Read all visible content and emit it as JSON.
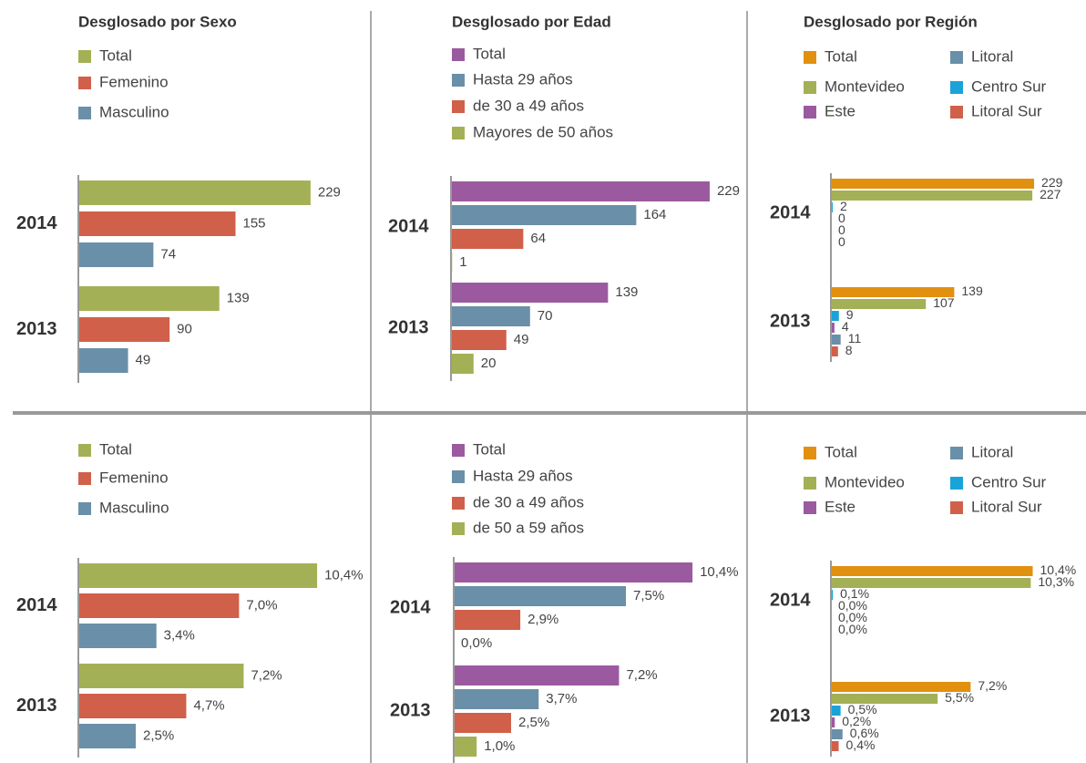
{
  "chart_data": [
    {
      "type": "bar",
      "title": "Desglosado por Sexo",
      "categories": [
        "2014",
        "2013"
      ],
      "series": [
        {
          "name": "Total",
          "color": "#a4b055",
          "values": [
            229,
            139
          ]
        },
        {
          "name": "Femenino",
          "color": "#d0604a",
          "values": [
            155,
            90
          ]
        },
        {
          "name": "Masculino",
          "color": "#6a8fa8",
          "values": [
            74,
            49
          ]
        }
      ]
    },
    {
      "type": "bar",
      "title": "Desglosado por Edad",
      "categories": [
        "2014",
        "2013"
      ],
      "series": [
        {
          "name": "Total",
          "color": "#9b5aa0",
          "values": [
            229,
            139
          ]
        },
        {
          "name": "Hasta 29 años",
          "color": "#6a8fa8",
          "values": [
            164,
            70
          ]
        },
        {
          "name": "de 30 a 49 años",
          "color": "#d0604a",
          "values": [
            64,
            49
          ]
        },
        {
          "name": "Mayores de 50 años",
          "color": "#a4b055",
          "values": [
            1,
            20
          ]
        }
      ]
    },
    {
      "type": "bar",
      "title": "Desglosado por Región",
      "categories": [
        "2014",
        "2013"
      ],
      "series": [
        {
          "name": "Total",
          "color": "#e2900f",
          "values": [
            229,
            139
          ]
        },
        {
          "name": "Montevideo",
          "color": "#a4b055",
          "values": [
            227,
            107
          ]
        },
        {
          "name": "Centro Sur",
          "color": "#1aa3d8",
          "values": [
            2,
            9
          ]
        },
        {
          "name": "Este",
          "color": "#9b5aa0",
          "values": [
            0,
            4
          ]
        },
        {
          "name": "Litoral",
          "color": "#6a8fa8",
          "values": [
            0,
            11
          ]
        },
        {
          "name": "Litoral Sur",
          "color": "#d0604a",
          "values": [
            0,
            8
          ]
        }
      ]
    },
    {
      "type": "bar",
      "categories": [
        "2014",
        "2013"
      ],
      "series": [
        {
          "name": "Total",
          "color": "#a4b055",
          "values": [
            10.4,
            7.2
          ],
          "value_labels": [
            "10,4%",
            "7,2%"
          ]
        },
        {
          "name": "Femenino",
          "color": "#d0604a",
          "values": [
            7.0,
            4.7
          ],
          "value_labels": [
            "7,0%",
            "4,7%"
          ]
        },
        {
          "name": "Masculino",
          "color": "#6a8fa8",
          "values": [
            3.4,
            2.5
          ],
          "value_labels": [
            "3,4%",
            "2,5%"
          ]
        }
      ]
    },
    {
      "type": "bar",
      "categories": [
        "2014",
        "2013"
      ],
      "series": [
        {
          "name": "Total",
          "color": "#9b5aa0",
          "values": [
            10.4,
            7.2
          ],
          "value_labels": [
            "10,4%",
            "7,2%"
          ]
        },
        {
          "name": "Hasta 29 años",
          "color": "#6a8fa8",
          "values": [
            7.5,
            3.7
          ],
          "value_labels": [
            "7,5%",
            "3,7%"
          ]
        },
        {
          "name": "de 30 a 49 años",
          "color": "#d0604a",
          "values": [
            2.9,
            2.5
          ],
          "value_labels": [
            "2,9%",
            "2,5%"
          ]
        },
        {
          "name": "de 50 a 59 años",
          "color": "#a4b055",
          "values": [
            0.0,
            1.0
          ],
          "value_labels": [
            "0,0%",
            "1,0%"
          ]
        }
      ]
    },
    {
      "type": "bar",
      "categories": [
        "2014",
        "2013"
      ],
      "series": [
        {
          "name": "Total",
          "color": "#e2900f",
          "values": [
            10.4,
            7.2
          ],
          "value_labels": [
            "10,4%",
            "7,2%"
          ]
        },
        {
          "name": "Montevideo",
          "color": "#a4b055",
          "values": [
            10.3,
            5.5
          ],
          "value_labels": [
            "10,3%",
            "5,5%"
          ]
        },
        {
          "name": "Centro Sur",
          "color": "#1aa3d8",
          "values": [
            0.1,
            0.5
          ],
          "value_labels": [
            "0,1%",
            "0,5%"
          ]
        },
        {
          "name": "Este",
          "color": "#9b5aa0",
          "values": [
            0.0,
            0.2
          ],
          "value_labels": [
            "0,0%",
            "0,2%"
          ]
        },
        {
          "name": "Litoral",
          "color": "#6a8fa8",
          "values": [
            0.0,
            0.6
          ],
          "value_labels": [
            "0,0%",
            "0,6%"
          ]
        },
        {
          "name": "Litoral Sur",
          "color": "#d0604a",
          "values": [
            0.0,
            0.4
          ],
          "value_labels": [
            "0,0%",
            "0,4%"
          ]
        }
      ]
    }
  ]
}
